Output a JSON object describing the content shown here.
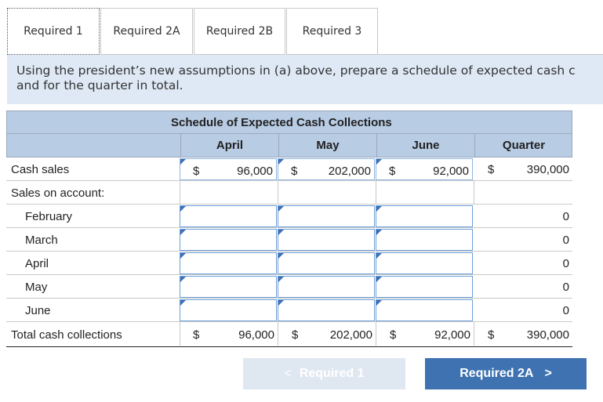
{
  "tabs": [
    {
      "label": "Required 1",
      "active": true
    },
    {
      "label": "Required 2A",
      "active": false
    },
    {
      "label": "Required 2B",
      "active": false
    },
    {
      "label": "Required 3",
      "active": false
    }
  ],
  "instructions": {
    "line1": "Using the president’s new assumptions in (a) above, prepare a schedule of expected cash c",
    "line2": "and for the quarter in total."
  },
  "schedule": {
    "title": "Schedule of Expected Cash Collections",
    "columns": [
      "April",
      "May",
      "June",
      "Quarter"
    ],
    "currency": "$",
    "cash_sales": {
      "label": "Cash sales",
      "april": "96,000",
      "may": "202,000",
      "june": "92,000",
      "quarter": "390,000"
    },
    "sales_on_account_label": "Sales on account:",
    "account_rows": [
      {
        "label": "February",
        "april": "",
        "may": "",
        "june": "",
        "quarter": "0"
      },
      {
        "label": "March",
        "april": "",
        "may": "",
        "june": "",
        "quarter": "0"
      },
      {
        "label": "April",
        "april": "",
        "may": "",
        "june": "",
        "quarter": "0"
      },
      {
        "label": "May",
        "april": "",
        "may": "",
        "june": "",
        "quarter": "0"
      },
      {
        "label": "June",
        "april": "",
        "may": "",
        "june": "",
        "quarter": "0"
      }
    ],
    "total": {
      "label": "Total cash collections",
      "april": "96,000",
      "may": "202,000",
      "june": "92,000",
      "quarter": "390,000"
    }
  },
  "nav": {
    "prev_label": "Required 1",
    "prev_chevron": "<",
    "next_label": "Required 2A",
    "next_chevron": ">"
  },
  "colors": {
    "header_bg": "#b8cce4",
    "instruction_bg": "#dee9f5",
    "next_button": "#3f72b1",
    "prev_button_disabled": "#dfe7f1"
  }
}
